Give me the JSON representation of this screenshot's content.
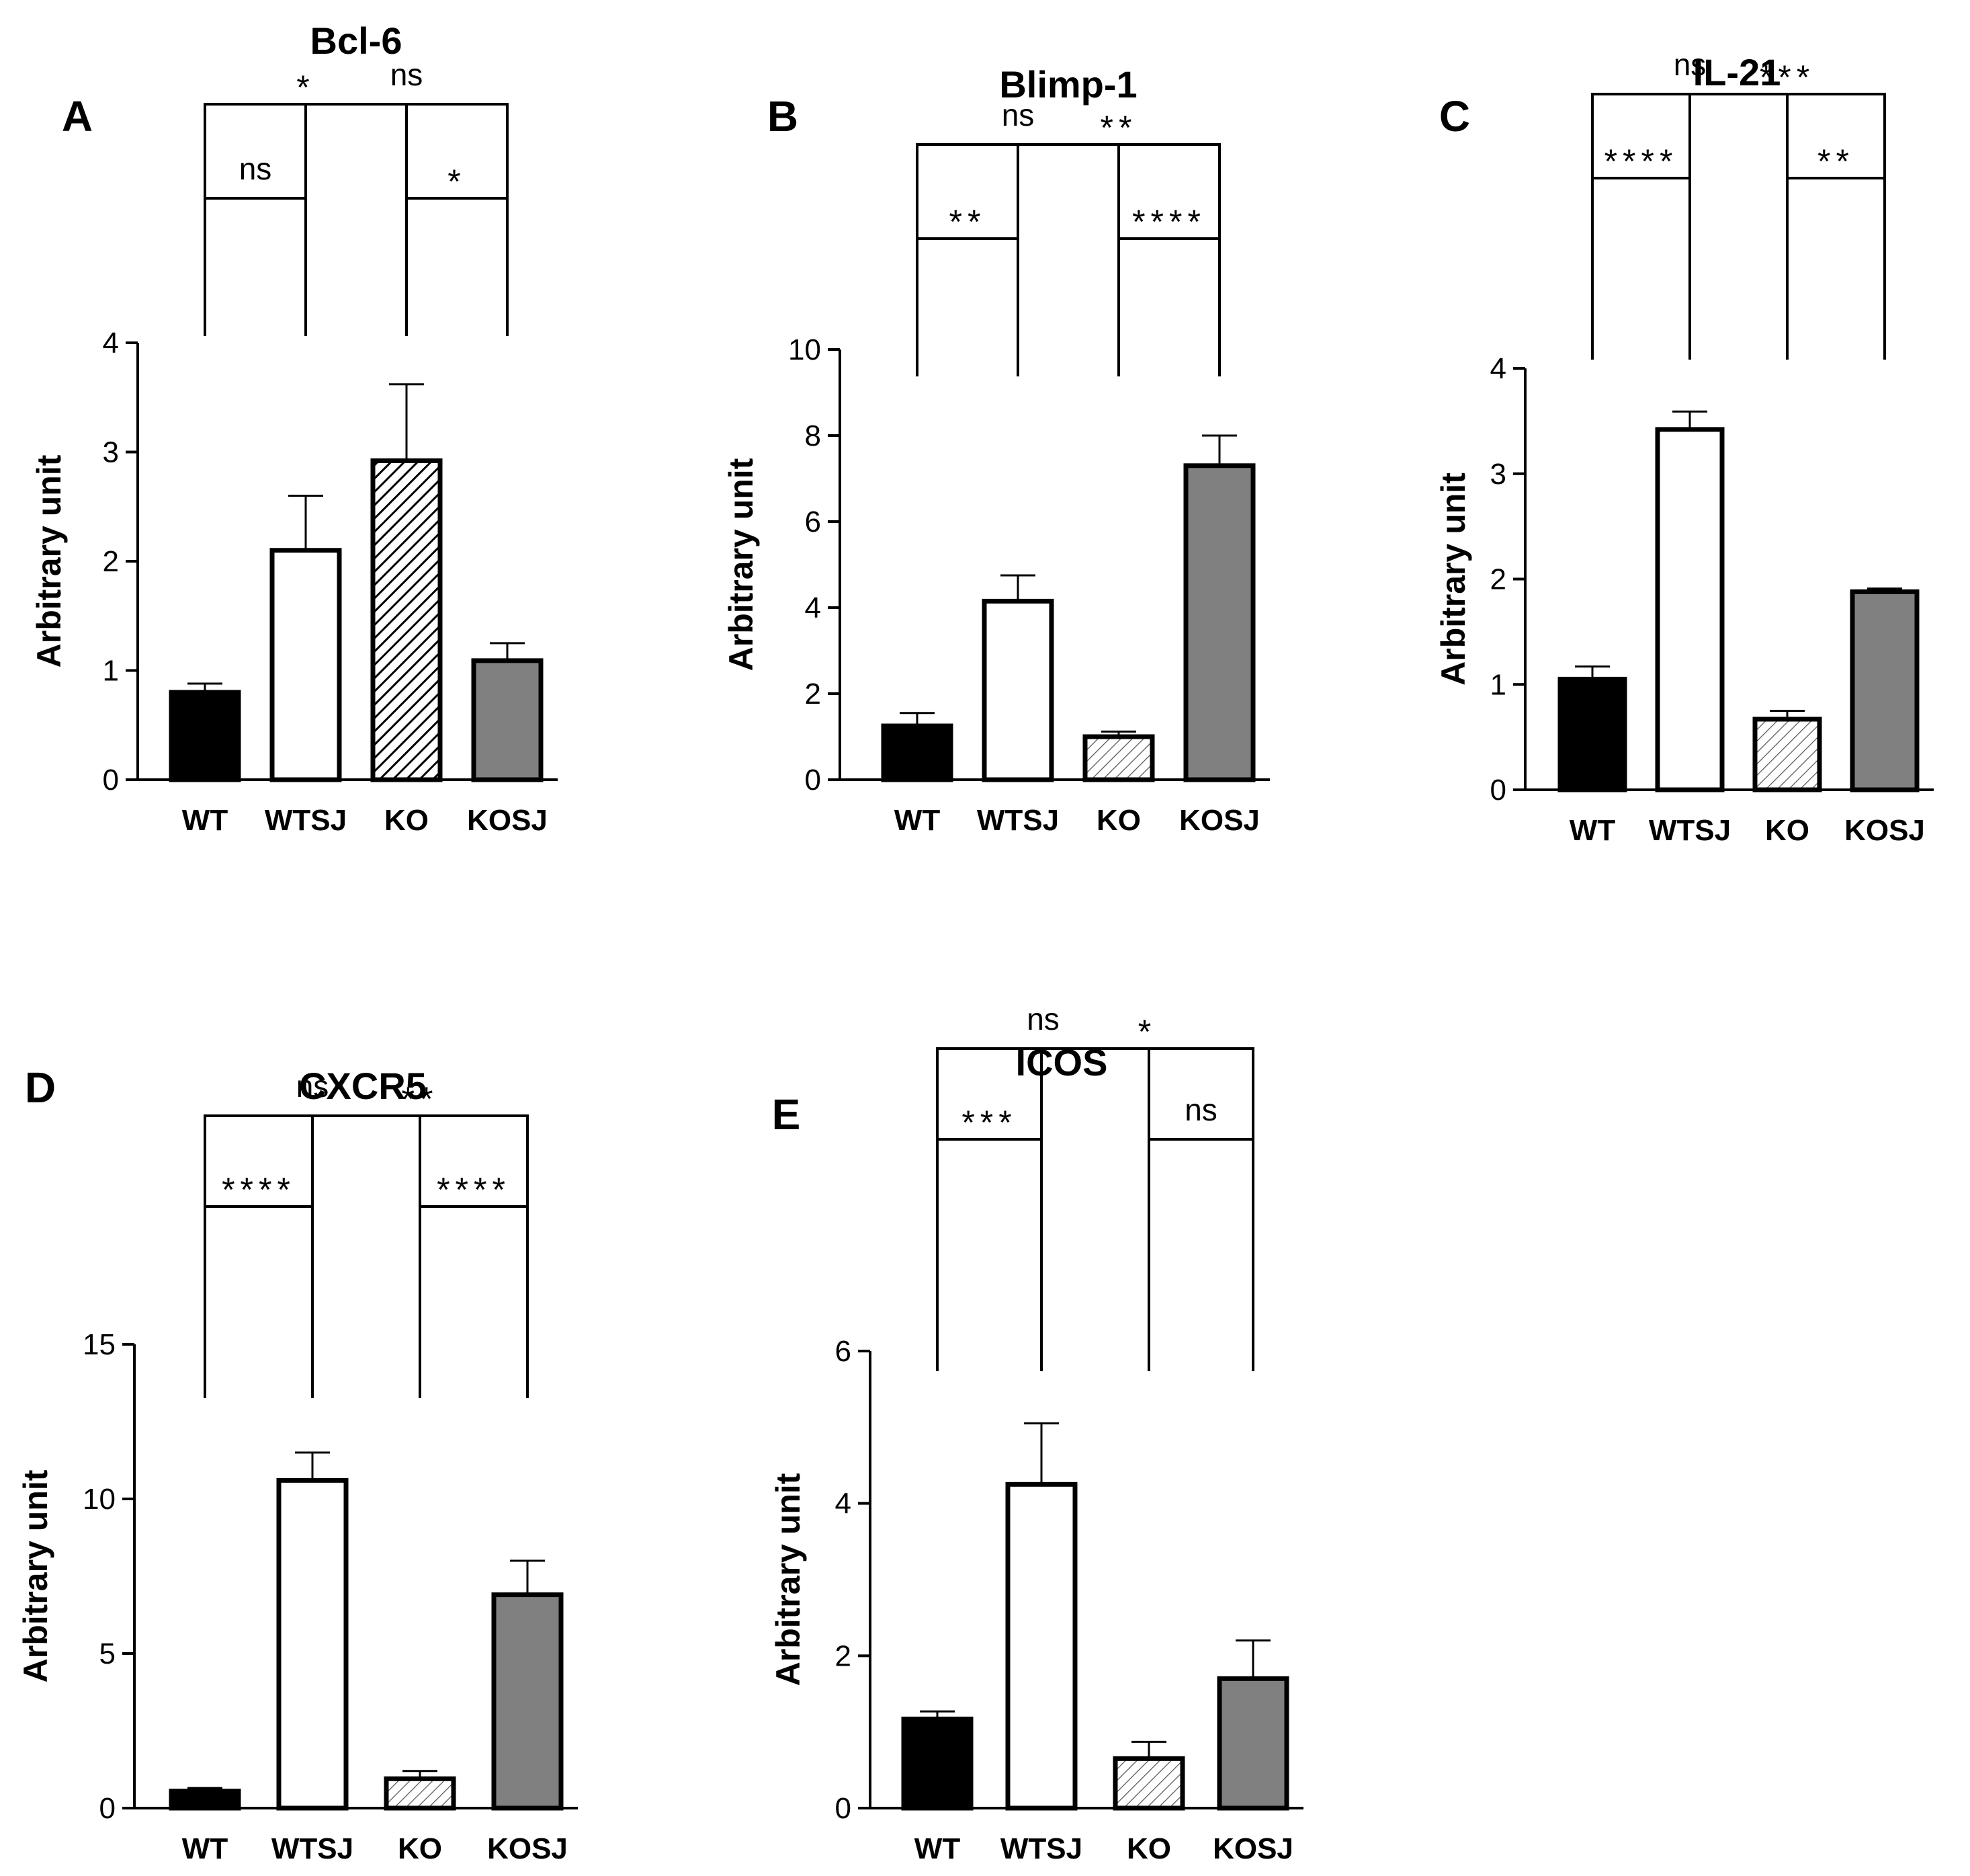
{
  "chart_data": [
    {
      "panel": "A",
      "type": "bar",
      "title": "Bcl-6",
      "ylabel": "Arbitrary unit",
      "categories": [
        "WT",
        "WTSJ",
        "KO",
        "KOSJ"
      ],
      "values": [
        0.8,
        2.1,
        2.92,
        1.09
      ],
      "errors": [
        0.08,
        0.5,
        0.7,
        0.16
      ],
      "ylim": [
        0,
        4
      ],
      "yticks": [
        "0",
        "1",
        "2",
        "3",
        "4"
      ],
      "comparisons": [
        {
          "pair": [
            "WT",
            "WTSJ"
          ],
          "label": "ns"
        },
        {
          "pair": [
            "KO",
            "KOSJ"
          ],
          "label": "*"
        },
        {
          "pair": [
            "WT",
            "KO"
          ],
          "label": "*"
        },
        {
          "pair": [
            "WTSJ",
            "KOSJ"
          ],
          "label": "ns"
        }
      ]
    },
    {
      "panel": "B",
      "type": "bar",
      "title": "Blimp-1",
      "ylabel": "Arbitrary unit",
      "categories": [
        "WT",
        "WTSJ",
        "KO",
        "KOSJ"
      ],
      "values": [
        1.25,
        4.15,
        1.0,
        7.3
      ],
      "errors": [
        0.3,
        0.6,
        0.12,
        0.7
      ],
      "ylim": [
        0,
        10
      ],
      "yticks": [
        "0",
        "2",
        "4",
        "6",
        "8",
        "10"
      ],
      "comparisons": [
        {
          "pair": [
            "WT",
            "WTSJ"
          ],
          "label": "**"
        },
        {
          "pair": [
            "KO",
            "KOSJ"
          ],
          "label": "****"
        },
        {
          "pair": [
            "WT",
            "KO"
          ],
          "label": "ns"
        },
        {
          "pair": [
            "WTSJ",
            "KOSJ"
          ],
          "label": "**"
        }
      ]
    },
    {
      "panel": "C",
      "type": "bar",
      "title": "IL-21",
      "ylabel": "Arbitrary unit",
      "categories": [
        "WT",
        "WTSJ",
        "KO",
        "KOSJ"
      ],
      "values": [
        1.05,
        3.42,
        0.67,
        1.88
      ],
      "errors": [
        0.12,
        0.17,
        0.08,
        0.03
      ],
      "ylim": [
        0,
        4
      ],
      "yticks": [
        "0",
        "1",
        "2",
        "3",
        "4"
      ],
      "comparisons": [
        {
          "pair": [
            "WT",
            "WTSJ"
          ],
          "label": "****"
        },
        {
          "pair": [
            "KO",
            "KOSJ"
          ],
          "label": "**"
        },
        {
          "pair": [
            "WT",
            "KO"
          ],
          "label": "ns"
        },
        {
          "pair": [
            "WTSJ",
            "KOSJ"
          ],
          "label": "***"
        }
      ]
    },
    {
      "panel": "D",
      "type": "bar",
      "title": "CXCR5",
      "ylabel": "Arbitrary unit",
      "categories": [
        "WT",
        "WTSJ",
        "KO",
        "KOSJ"
      ],
      "values": [
        0.55,
        10.6,
        0.95,
        6.9
      ],
      "errors": [
        0.1,
        0.9,
        0.25,
        1.1
      ],
      "ylim": [
        0,
        15
      ],
      "yticks": [
        "0",
        "5",
        "10",
        "15"
      ],
      "comparisons": [
        {
          "pair": [
            "WT",
            "WTSJ"
          ],
          "label": "****"
        },
        {
          "pair": [
            "KO",
            "KOSJ"
          ],
          "label": "****"
        },
        {
          "pair": [
            "WT",
            "KO"
          ],
          "label": "ns"
        },
        {
          "pair": [
            "WTSJ",
            "KOSJ"
          ],
          "label": "**"
        }
      ]
    },
    {
      "panel": "E",
      "type": "bar",
      "title": "ICOS",
      "ylabel": "Arbitrary unit",
      "categories": [
        "WT",
        "WTSJ",
        "KO",
        "KOSJ"
      ],
      "values": [
        1.17,
        4.25,
        0.65,
        1.7
      ],
      "errors": [
        0.1,
        0.8,
        0.22,
        0.5
      ],
      "ylim": [
        0,
        6
      ],
      "yticks": [
        "0",
        "2",
        "4",
        "6"
      ],
      "comparisons": [
        {
          "pair": [
            "WT",
            "WTSJ"
          ],
          "label": "***"
        },
        {
          "pair": [
            "KO",
            "KOSJ"
          ],
          "label": "ns"
        },
        {
          "pair": [
            "WT",
            "KO"
          ],
          "label": "ns"
        },
        {
          "pair": [
            "WTSJ",
            "KOSJ"
          ],
          "label": "*"
        }
      ]
    }
  ],
  "styles": {
    "WT": {
      "fill": "#000000",
      "pattern": "none"
    },
    "WTSJ": {
      "fill": "#ffffff",
      "pattern": "none"
    },
    "KO": {
      "fill": "#ffffff",
      "pattern": "hatch"
    },
    "KOSJ": {
      "fill": "#808080",
      "pattern": "none"
    },
    "axis_color": "#000000"
  }
}
